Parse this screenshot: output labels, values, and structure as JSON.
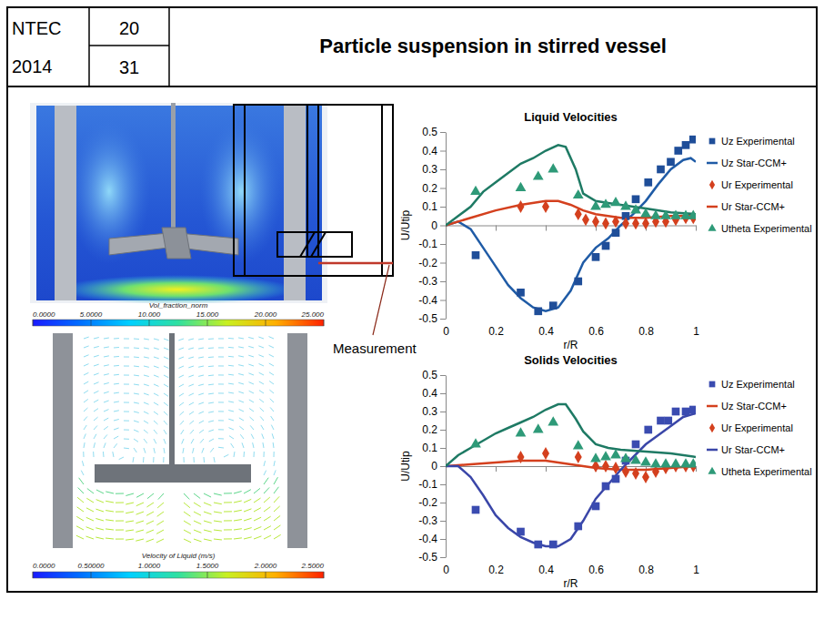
{
  "header": {
    "event": "NTEC",
    "year": "2014",
    "numbers": [
      20,
      31
    ],
    "title": "Particle suspension in stirred vessel"
  },
  "annotation": "Measurement",
  "images": [
    {
      "colorbar": {
        "title": "Vol_fraction_norm",
        "range": [
          0,
          25
        ],
        "ticks": [
          {
            "value": 0,
            "label": "0.0000"
          },
          {
            "value": 5,
            "label": "5.0000"
          },
          {
            "value": 10,
            "label": "10.000"
          },
          {
            "value": 15,
            "label": "15.000"
          },
          {
            "value": 20,
            "label": "20.000"
          },
          {
            "value": 25,
            "label": "25.000"
          }
        ]
      }
    },
    {
      "colorbar": {
        "title": "Velocity of Liquid (m/s)",
        "range": [
          0,
          2.5
        ],
        "ticks": [
          {
            "value": 0,
            "label": "0.0000"
          },
          {
            "value": 0.5,
            "label": "0.50000"
          },
          {
            "value": 1,
            "label": "1.0000"
          },
          {
            "value": 1.5,
            "label": "1.5000"
          },
          {
            "value": 2,
            "label": "2.0000"
          },
          {
            "value": 2.5,
            "label": "2.5000"
          }
        ]
      }
    }
  ],
  "chart_data": [
    {
      "type": "line",
      "title": "Liquid Velocities",
      "x_label": "r/R",
      "y_label": "U/Utip",
      "xlim": [
        0,
        1
      ],
      "ylim": [
        -0.5,
        0.5
      ],
      "xticks": [
        0,
        0.2,
        0.4,
        0.6,
        0.8,
        1
      ],
      "yticks": [
        -0.5,
        -0.4,
        -0.3,
        -0.2,
        -0.1,
        0,
        0.1,
        0.2,
        0.3,
        0.4,
        0.5
      ],
      "grid": false,
      "legend": "right",
      "series": [
        {
          "name": "Uz Experimental",
          "color": "#1f4e99",
          "type": "scatter",
          "marker": "square",
          "x": [
            0.12,
            0.3,
            0.37,
            0.43,
            0.53,
            0.6,
            0.64,
            0.68,
            0.72,
            0.76,
            0.81,
            0.86,
            0.9,
            0.93,
            0.96,
            0.99
          ],
          "values": [
            -0.16,
            -0.36,
            -0.46,
            -0.43,
            -0.3,
            -0.17,
            -0.11,
            -0.04,
            0.05,
            0.14,
            0.23,
            0.3,
            0.34,
            0.4,
            0.43,
            0.46
          ]
        },
        {
          "name": "Uz Star-CCM+",
          "color": "#1f5ba6",
          "type": "line",
          "line_style": "solid",
          "x": [
            0,
            0.05,
            0.1,
            0.15,
            0.2,
            0.25,
            0.3,
            0.35,
            0.4,
            0.45,
            0.5,
            0.55,
            0.6,
            0.65,
            0.7,
            0.75,
            0.8,
            0.85,
            0.9,
            0.95,
            0.98,
            1
          ],
          "values": [
            0,
            0.02,
            -0.02,
            -0.12,
            -0.22,
            -0.32,
            -0.39,
            -0.44,
            -0.46,
            -0.44,
            -0.35,
            -0.2,
            -0.12,
            -0.07,
            0,
            0.06,
            0.13,
            0.22,
            0.3,
            0.35,
            0.36,
            0.34
          ]
        },
        {
          "name": "Ur Experimental",
          "color": "#d4401e",
          "type": "scatter",
          "marker": "diamond",
          "x": [
            0.3,
            0.4,
            0.53,
            0.56,
            0.6,
            0.64,
            0.68,
            0.72,
            0.76,
            0.8,
            0.84,
            0.88,
            0.92,
            0.96,
            0.99
          ],
          "values": [
            0.1,
            0.1,
            0.06,
            0.03,
            0.02,
            0.01,
            0.02,
            0.01,
            0.01,
            0.01,
            0.02,
            0.02,
            0.03,
            0.04,
            0.04
          ]
        },
        {
          "name": "Ur Star-CCM+",
          "color": "#d4401e",
          "type": "line",
          "line_style": "solid",
          "x": [
            0,
            0.1,
            0.2,
            0.3,
            0.4,
            0.45,
            0.5,
            0.55,
            0.6,
            0.65,
            0.7,
            0.8,
            0.9,
            1
          ],
          "values": [
            0,
            0.04,
            0.08,
            0.11,
            0.13,
            0.13,
            0.11,
            0.08,
            0.06,
            0.05,
            0.04,
            0.04,
            0.05,
            0.05
          ]
        },
        {
          "name": "Utheta Experimental",
          "color": "#2e9a78",
          "type": "scatter",
          "marker": "triangle",
          "x": [
            0.12,
            0.3,
            0.37,
            0.43,
            0.53,
            0.6,
            0.64,
            0.68,
            0.72,
            0.76,
            0.8,
            0.84,
            0.88,
            0.92,
            0.96,
            0.99
          ],
          "values": [
            0.18,
            0.2,
            0.26,
            0.3,
            0.16,
            0.1,
            0.11,
            0.12,
            0.1,
            0.08,
            0.06,
            0.05,
            0.05,
            0.05,
            0.05,
            0.05
          ]
        },
        {
          "color": "#1e7a64",
          "type": "line",
          "line_style": "solid",
          "x": [
            0,
            0.05,
            0.1,
            0.15,
            0.2,
            0.25,
            0.3,
            0.35,
            0.4,
            0.45,
            0.48,
            0.52,
            0.55,
            0.6,
            0.65,
            0.7,
            0.8,
            0.9,
            1
          ],
          "values": [
            0,
            0.05,
            0.1,
            0.18,
            0.23,
            0.28,
            0.33,
            0.36,
            0.4,
            0.43,
            0.42,
            0.3,
            0.17,
            0.13,
            0.12,
            0.11,
            0.09,
            0.07,
            0.06
          ]
        }
      ]
    },
    {
      "type": "line",
      "title": "Solids Velocities",
      "x_label": "r/R",
      "y_label": "U/Utip",
      "xlim": [
        0,
        1
      ],
      "ylim": [
        -0.5,
        0.5
      ],
      "xticks": [
        0,
        0.2,
        0.4,
        0.6,
        0.8,
        1
      ],
      "yticks": [
        -0.5,
        -0.4,
        -0.3,
        -0.2,
        -0.1,
        0,
        0.1,
        0.2,
        0.3,
        0.4,
        0.5
      ],
      "grid": false,
      "legend": "right",
      "series": [
        {
          "name": "Uz Experimental",
          "color": "#3a4bb0",
          "type": "scatter",
          "marker": "square",
          "x": [
            0.12,
            0.3,
            0.37,
            0.43,
            0.53,
            0.6,
            0.64,
            0.68,
            0.72,
            0.76,
            0.81,
            0.86,
            0.89,
            0.92,
            0.96,
            0.99
          ],
          "values": [
            -0.24,
            -0.36,
            -0.43,
            -0.43,
            -0.33,
            -0.22,
            -0.11,
            -0.07,
            0.03,
            0.12,
            0.2,
            0.25,
            0.25,
            0.3,
            0.3,
            0.31
          ]
        },
        {
          "name": "Uz Star-CCM+",
          "color": "#d4401e",
          "type": "line",
          "line_style": "solid",
          "x": [
            0,
            0.1,
            0.2,
            0.3,
            0.4,
            0.45,
            0.5,
            0.55,
            0.6,
            0.7,
            0.8,
            0.9,
            1
          ],
          "values": [
            0,
            0.01,
            0.02,
            0.03,
            0.03,
            0.02,
            0.01,
            0,
            -0.01,
            -0.02,
            -0.02,
            -0.01,
            0
          ]
        },
        {
          "name": "Ur Experimental",
          "color": "#d4401e",
          "type": "scatter",
          "marker": "diamond",
          "x": [
            0.3,
            0.4,
            0.53,
            0.6,
            0.64,
            0.68,
            0.72,
            0.76,
            0.8,
            0.84,
            0.88,
            0.92,
            0.96,
            0.99
          ],
          "values": [
            0.05,
            0.07,
            0.05,
            0,
            0,
            -0.01,
            -0.03,
            -0.04,
            -0.06,
            -0.03,
            -0.01,
            0,
            0,
            0
          ]
        },
        {
          "name": "Ur Star-CCM+",
          "color": "#3a46a8",
          "type": "line",
          "line_style": "solid",
          "x": [
            0,
            0.05,
            0.1,
            0.15,
            0.2,
            0.25,
            0.3,
            0.35,
            0.4,
            0.45,
            0.5,
            0.55,
            0.6,
            0.65,
            0.7,
            0.75,
            0.8,
            0.85,
            0.9,
            0.95,
            1
          ],
          "values": [
            0,
            0,
            -0.06,
            -0.16,
            -0.27,
            -0.34,
            -0.39,
            -0.42,
            -0.44,
            -0.44,
            -0.4,
            -0.3,
            -0.18,
            -0.1,
            -0.02,
            0.05,
            0.12,
            0.17,
            0.22,
            0.27,
            0.29
          ]
        },
        {
          "name": "Utheta Experimental",
          "color": "#2e9a78",
          "type": "scatter",
          "marker": "triangle",
          "x": [
            0.12,
            0.3,
            0.37,
            0.43,
            0.53,
            0.6,
            0.64,
            0.68,
            0.72,
            0.76,
            0.8,
            0.84,
            0.88,
            0.92,
            0.96,
            0.99
          ],
          "values": [
            0.12,
            0.18,
            0.2,
            0.24,
            0.11,
            0.04,
            0.05,
            0.06,
            0.04,
            0.03,
            0.02,
            0.01,
            0.01,
            0.01,
            0.01,
            0.01
          ]
        },
        {
          "color": "#1e7a64",
          "type": "line",
          "line_style": "solid",
          "x": [
            0,
            0.05,
            0.1,
            0.15,
            0.2,
            0.25,
            0.3,
            0.35,
            0.4,
            0.45,
            0.48,
            0.52,
            0.55,
            0.6,
            0.65,
            0.7,
            0.8,
            0.9,
            1
          ],
          "values": [
            0,
            0.06,
            0.1,
            0.14,
            0.18,
            0.21,
            0.24,
            0.27,
            0.31,
            0.34,
            0.34,
            0.26,
            0.19,
            0.12,
            0.1,
            0.09,
            0.08,
            0.07,
            0.05
          ]
        }
      ]
    }
  ]
}
